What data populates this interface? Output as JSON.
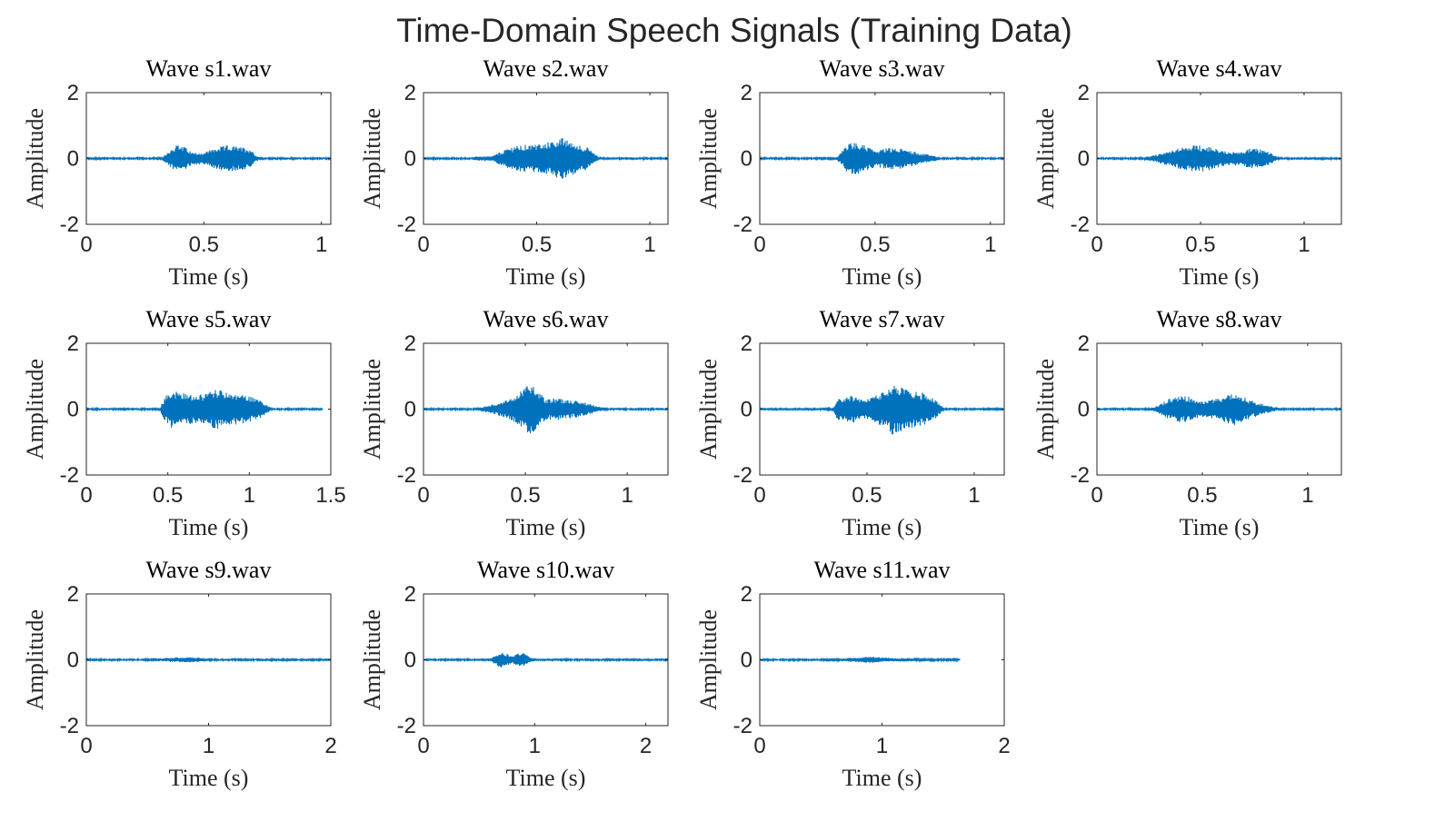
{
  "figure": {
    "title": "Time-Domain Speech Signals (Training Data)",
    "color": "#0072BD"
  },
  "chart_data": [
    {
      "type": "line",
      "title": "Wave s1.wav",
      "xlabel": "Time (s)",
      "ylabel": "Amplitude",
      "duration": 1.04,
      "xlim": [
        0,
        1.04
      ],
      "ylim": [
        -2,
        2
      ],
      "xticks": [
        0,
        0.5,
        1
      ],
      "xtick_labels": [
        "0",
        "0.5",
        "1"
      ],
      "yticks": [
        -2,
        0,
        2
      ],
      "ytick_labels": [
        "-2",
        "0",
        "2"
      ],
      "series": [
        {
          "noise": 0.02,
          "envelope": [
            [
              0,
              0.02
            ],
            [
              0.32,
              0.02
            ],
            [
              0.34,
              0.15
            ],
            [
              0.38,
              0.42
            ],
            [
              0.42,
              0.35
            ],
            [
              0.45,
              0.18
            ],
            [
              0.5,
              0.18
            ],
            [
              0.54,
              0.3
            ],
            [
              0.6,
              0.4
            ],
            [
              0.66,
              0.35
            ],
            [
              0.7,
              0.3
            ],
            [
              0.72,
              0.1
            ],
            [
              0.74,
              0.02
            ],
            [
              1.04,
              0.02
            ]
          ]
        }
      ]
    },
    {
      "type": "line",
      "title": "Wave s2.wav",
      "xlabel": "Time (s)",
      "ylabel": "Amplitude",
      "duration": 1.08,
      "xlim": [
        0,
        1.08
      ],
      "ylim": [
        -2,
        2
      ],
      "xticks": [
        0,
        0.5,
        1
      ],
      "xtick_labels": [
        "0",
        "0.5",
        "1"
      ],
      "yticks": [
        -2,
        0,
        2
      ],
      "ytick_labels": [
        "-2",
        "0",
        "2"
      ],
      "series": [
        {
          "noise": 0.02,
          "envelope": [
            [
              0,
              0.02
            ],
            [
              0.22,
              0.02
            ],
            [
              0.24,
              0.07
            ],
            [
              0.3,
              0.06
            ],
            [
              0.34,
              0.2
            ],
            [
              0.4,
              0.38
            ],
            [
              0.48,
              0.42
            ],
            [
              0.56,
              0.5
            ],
            [
              0.6,
              0.65
            ],
            [
              0.66,
              0.5
            ],
            [
              0.72,
              0.35
            ],
            [
              0.76,
              0.12
            ],
            [
              0.78,
              0.02
            ],
            [
              1.08,
              0.02
            ]
          ]
        }
      ]
    },
    {
      "type": "line",
      "title": "Wave s3.wav",
      "xlabel": "Time (s)",
      "ylabel": "Amplitude",
      "duration": 1.06,
      "xlim": [
        0,
        1.06
      ],
      "ylim": [
        -2,
        2
      ],
      "xticks": [
        0,
        0.5,
        1
      ],
      "xtick_labels": [
        "0",
        "0.5",
        "1"
      ],
      "yticks": [
        -2,
        0,
        2
      ],
      "ytick_labels": [
        "-2",
        "0",
        "2"
      ],
      "series": [
        {
          "noise": 0.02,
          "envelope": [
            [
              0,
              0.02
            ],
            [
              0.33,
              0.02
            ],
            [
              0.35,
              0.15
            ],
            [
              0.38,
              0.45
            ],
            [
              0.42,
              0.5
            ],
            [
              0.46,
              0.38
            ],
            [
              0.5,
              0.25
            ],
            [
              0.56,
              0.32
            ],
            [
              0.62,
              0.3
            ],
            [
              0.7,
              0.16
            ],
            [
              0.76,
              0.08
            ],
            [
              0.78,
              0.02
            ],
            [
              1.06,
              0.02
            ]
          ]
        }
      ]
    },
    {
      "type": "line",
      "title": "Wave s4.wav",
      "xlabel": "Time (s)",
      "ylabel": "Amplitude",
      "duration": 1.18,
      "xlim": [
        0,
        1.18
      ],
      "ylim": [
        -2,
        2
      ],
      "xticks": [
        0,
        0.5,
        1
      ],
      "xtick_labels": [
        "0",
        "0.5",
        "1"
      ],
      "yticks": [
        -2,
        0,
        2
      ],
      "ytick_labels": [
        "-2",
        "0",
        "2"
      ],
      "series": [
        {
          "noise": 0.02,
          "envelope": [
            [
              0,
              0.02
            ],
            [
              0.22,
              0.02
            ],
            [
              0.26,
              0.08
            ],
            [
              0.34,
              0.2
            ],
            [
              0.42,
              0.35
            ],
            [
              0.48,
              0.42
            ],
            [
              0.54,
              0.36
            ],
            [
              0.6,
              0.25
            ],
            [
              0.68,
              0.2
            ],
            [
              0.74,
              0.3
            ],
            [
              0.8,
              0.28
            ],
            [
              0.86,
              0.1
            ],
            [
              0.88,
              0.02
            ],
            [
              1.18,
              0.02
            ]
          ]
        }
      ]
    },
    {
      "type": "line",
      "title": "Wave s5.wav",
      "xlabel": "Time (s)",
      "ylabel": "Amplitude",
      "duration": 1.45,
      "xlim": [
        0,
        1.5
      ],
      "ylim": [
        -2,
        2
      ],
      "xticks": [
        0,
        0.5,
        1,
        1.5
      ],
      "xtick_labels": [
        "0",
        "0.5",
        "1",
        "1.5"
      ],
      "yticks": [
        -2,
        0,
        2
      ],
      "ytick_labels": [
        "-2",
        "0",
        "2"
      ],
      "series": [
        {
          "noise": 0.02,
          "envelope": [
            [
              0,
              0.02
            ],
            [
              0.45,
              0.02
            ],
            [
              0.48,
              0.35
            ],
            [
              0.52,
              0.58
            ],
            [
              0.6,
              0.5
            ],
            [
              0.68,
              0.42
            ],
            [
              0.74,
              0.5
            ],
            [
              0.8,
              0.62
            ],
            [
              0.86,
              0.5
            ],
            [
              0.94,
              0.45
            ],
            [
              1.0,
              0.4
            ],
            [
              1.06,
              0.3
            ],
            [
              1.1,
              0.15
            ],
            [
              1.14,
              0.02
            ],
            [
              1.45,
              0.02
            ]
          ]
        }
      ]
    },
    {
      "type": "line",
      "title": "Wave s6.wav",
      "xlabel": "Time (s)",
      "ylabel": "Amplitude",
      "duration": 1.2,
      "xlim": [
        0,
        1.2
      ],
      "ylim": [
        -2,
        2
      ],
      "xticks": [
        0,
        0.5,
        1
      ],
      "xtick_labels": [
        "0",
        "0.5",
        "1"
      ],
      "yticks": [
        -2,
        0,
        2
      ],
      "ytick_labels": [
        "-2",
        "0",
        "2"
      ],
      "series": [
        {
          "noise": 0.02,
          "envelope": [
            [
              0,
              0.02
            ],
            [
              0.26,
              0.02
            ],
            [
              0.3,
              0.08
            ],
            [
              0.36,
              0.18
            ],
            [
              0.42,
              0.3
            ],
            [
              0.48,
              0.55
            ],
            [
              0.52,
              0.78
            ],
            [
              0.56,
              0.6
            ],
            [
              0.6,
              0.3
            ],
            [
              0.64,
              0.35
            ],
            [
              0.7,
              0.3
            ],
            [
              0.8,
              0.2
            ],
            [
              0.86,
              0.08
            ],
            [
              0.9,
              0.02
            ],
            [
              1.2,
              0.02
            ]
          ]
        }
      ]
    },
    {
      "type": "line",
      "title": "Wave s7.wav",
      "xlabel": "Time (s)",
      "ylabel": "Amplitude",
      "duration": 1.14,
      "xlim": [
        0,
        1.14
      ],
      "ylim": [
        -2,
        2
      ],
      "xticks": [
        0,
        0.5,
        1
      ],
      "xtick_labels": [
        "0",
        "0.5",
        "1"
      ],
      "yticks": [
        -2,
        0,
        2
      ],
      "ytick_labels": [
        "-2",
        "0",
        "2"
      ],
      "series": [
        {
          "noise": 0.02,
          "envelope": [
            [
              0,
              0.02
            ],
            [
              0.3,
              0.02
            ],
            [
              0.32,
              0.08
            ],
            [
              0.34,
              0.02
            ],
            [
              0.36,
              0.3
            ],
            [
              0.42,
              0.45
            ],
            [
              0.48,
              0.3
            ],
            [
              0.52,
              0.35
            ],
            [
              0.58,
              0.55
            ],
            [
              0.62,
              0.8
            ],
            [
              0.68,
              0.6
            ],
            [
              0.76,
              0.5
            ],
            [
              0.82,
              0.3
            ],
            [
              0.86,
              0.02
            ],
            [
              1.14,
              0.02
            ]
          ]
        }
      ]
    },
    {
      "type": "line",
      "title": "Wave s8.wav",
      "xlabel": "Time (s)",
      "ylabel": "Amplitude",
      "duration": 1.16,
      "xlim": [
        0,
        1.16
      ],
      "ylim": [
        -2,
        2
      ],
      "xticks": [
        0,
        0.5,
        1
      ],
      "xtick_labels": [
        "0",
        "0.5",
        "1"
      ],
      "yticks": [
        -2,
        0,
        2
      ],
      "ytick_labels": [
        "-2",
        "0",
        "2"
      ],
      "series": [
        {
          "noise": 0.02,
          "envelope": [
            [
              0,
              0.02
            ],
            [
              0.24,
              0.02
            ],
            [
              0.28,
              0.08
            ],
            [
              0.34,
              0.3
            ],
            [
              0.38,
              0.4
            ],
            [
              0.44,
              0.38
            ],
            [
              0.5,
              0.25
            ],
            [
              0.56,
              0.3
            ],
            [
              0.62,
              0.45
            ],
            [
              0.66,
              0.48
            ],
            [
              0.72,
              0.3
            ],
            [
              0.8,
              0.12
            ],
            [
              0.86,
              0.05
            ],
            [
              0.9,
              0.02
            ],
            [
              1.16,
              0.02
            ]
          ]
        }
      ]
    },
    {
      "type": "line",
      "title": "Wave s9.wav",
      "xlabel": "Time (s)",
      "ylabel": "Amplitude",
      "duration": 2.0,
      "xlim": [
        0,
        2
      ],
      "ylim": [
        -2,
        2
      ],
      "xticks": [
        0,
        1,
        2
      ],
      "xtick_labels": [
        "0",
        "1",
        "2"
      ],
      "yticks": [
        -2,
        0,
        2
      ],
      "ytick_labels": [
        "-2",
        "0",
        "2"
      ],
      "series": [
        {
          "noise": 0.02,
          "envelope": [
            [
              0,
              0.02
            ],
            [
              0.5,
              0.02
            ],
            [
              0.6,
              0.04
            ],
            [
              0.75,
              0.07
            ],
            [
              0.85,
              0.08
            ],
            [
              0.95,
              0.05
            ],
            [
              1.05,
              0.02
            ],
            [
              2.0,
              0.02
            ]
          ]
        }
      ]
    },
    {
      "type": "line",
      "title": "Wave s10.wav",
      "xlabel": "Time (s)",
      "ylabel": "Amplitude",
      "duration": 2.2,
      "xlim": [
        0,
        2.2
      ],
      "ylim": [
        -2,
        2
      ],
      "xticks": [
        0,
        1,
        2
      ],
      "xtick_labels": [
        "0",
        "1",
        "2"
      ],
      "yticks": [
        -2,
        0,
        2
      ],
      "ytick_labels": [
        "-2",
        "0",
        "2"
      ],
      "series": [
        {
          "noise": 0.02,
          "envelope": [
            [
              0,
              0.02
            ],
            [
              0.6,
              0.02
            ],
            [
              0.65,
              0.15
            ],
            [
              0.7,
              0.25
            ],
            [
              0.75,
              0.18
            ],
            [
              0.8,
              0.1
            ],
            [
              0.85,
              0.2
            ],
            [
              0.9,
              0.22
            ],
            [
              0.95,
              0.1
            ],
            [
              1.0,
              0.02
            ],
            [
              2.2,
              0.02
            ]
          ]
        }
      ]
    },
    {
      "type": "line",
      "title": "Wave s11.wav",
      "xlabel": "Time (s)",
      "ylabel": "Amplitude",
      "duration": 1.64,
      "xlim": [
        0,
        2
      ],
      "ylim": [
        -2,
        2
      ],
      "xticks": [
        0,
        1,
        2
      ],
      "xtick_labels": [
        "0",
        "1",
        "2"
      ],
      "yticks": [
        -2,
        0,
        2
      ],
      "ytick_labels": [
        "-2",
        "0",
        "2"
      ],
      "series": [
        {
          "noise": 0.02,
          "envelope": [
            [
              0,
              0.02
            ],
            [
              0.6,
              0.02
            ],
            [
              0.75,
              0.06
            ],
            [
              0.9,
              0.1
            ],
            [
              1.0,
              0.07
            ],
            [
              1.15,
              0.04
            ],
            [
              1.3,
              0.03
            ],
            [
              1.64,
              0.02
            ]
          ]
        }
      ]
    }
  ]
}
